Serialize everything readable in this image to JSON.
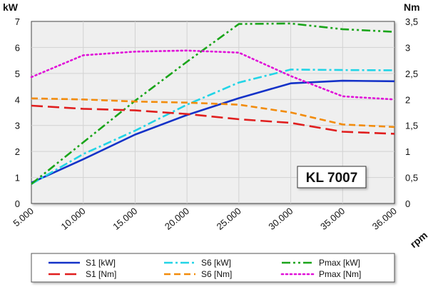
{
  "chart_data": {
    "type": "line",
    "title": "",
    "badge": "KL 7007",
    "y_left_unit": "kW",
    "y_right_unit": "Nm",
    "x_unit": "rpm",
    "categories": [
      "5.000",
      "10.000",
      "15.000",
      "20.000",
      "25.000",
      "30.000",
      "35.000",
      "36.000"
    ],
    "y_left_ticks": [
      "0",
      "1",
      "2",
      "3",
      "4",
      "5",
      "6",
      "7"
    ],
    "y_right_ticks": [
      "0",
      "0,5",
      "1",
      "1,5",
      "2",
      "2,5",
      "3",
      "3,5"
    ],
    "ylim_left": [
      0,
      7
    ],
    "ylim_right": [
      0,
      3.5
    ],
    "grid": true,
    "legend_position": "bottom",
    "series": [
      {
        "name": "S1 [kW]",
        "axis": "left",
        "color": "#1432c8",
        "dash": "solid",
        "values": [
          0.8,
          1.7,
          2.65,
          3.4,
          4.05,
          4.62,
          4.72,
          4.7
        ]
      },
      {
        "name": "S6 [kW]",
        "axis": "left",
        "color": "#22d4e6",
        "dash": "dashdot",
        "values": [
          0.75,
          1.9,
          2.8,
          3.8,
          4.65,
          5.15,
          5.13,
          5.12
        ]
      },
      {
        "name": "Pmax [kW]",
        "axis": "left",
        "color": "#1aa51a",
        "dash": "dashdotdot",
        "values": [
          0.75,
          2.35,
          3.95,
          5.45,
          6.9,
          6.92,
          6.7,
          6.6
        ]
      },
      {
        "name": "S1 [Nm]",
        "axis": "right",
        "color": "#e01e1e",
        "dash": "longdash",
        "values": [
          1.88,
          1.82,
          1.79,
          1.72,
          1.62,
          1.55,
          1.38,
          1.34
        ]
      },
      {
        "name": "S6 [Nm]",
        "axis": "right",
        "color": "#f28c0c",
        "dash": "dash",
        "values": [
          2.02,
          2.0,
          1.96,
          1.94,
          1.9,
          1.75,
          1.52,
          1.47
        ]
      },
      {
        "name": "Pmax [Nm]",
        "axis": "right",
        "color": "#e010d8",
        "dash": "dot",
        "values": [
          2.43,
          2.85,
          2.92,
          2.94,
          2.9,
          2.45,
          2.06,
          2.0
        ]
      }
    ]
  }
}
